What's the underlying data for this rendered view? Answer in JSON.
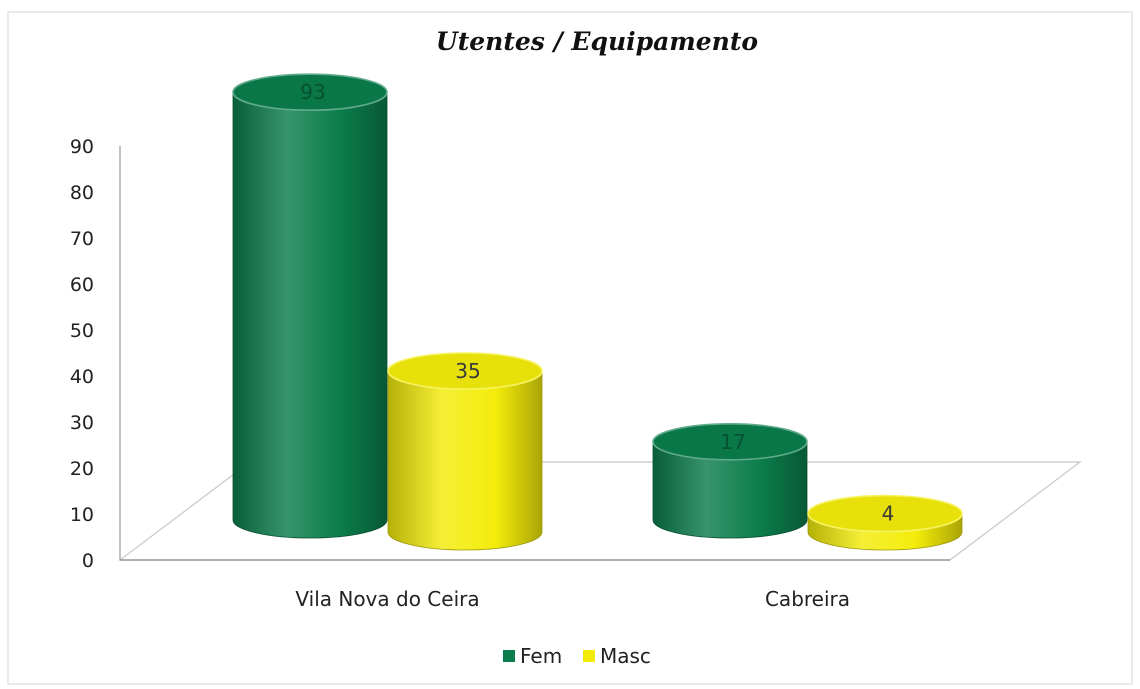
{
  "chart_data": {
    "type": "bar",
    "title": "Utentes / Equipamento",
    "categories": [
      "Vila Nova do Ceira",
      "Cabreira"
    ],
    "series": [
      {
        "name": "Fem",
        "values": [
          93,
          17
        ],
        "color": "#0b7d4c"
      },
      {
        "name": "Masc",
        "values": [
          35,
          4
        ],
        "color": "#f3ec0a"
      }
    ],
    "data_labels": [
      [
        "93",
        "17"
      ],
      [
        "35",
        "4"
      ]
    ],
    "xlabel": "",
    "ylabel": "",
    "ylim": [
      0,
      90
    ],
    "yticks": [
      0,
      10,
      20,
      30,
      40,
      50,
      60,
      70,
      80,
      90
    ],
    "legend_position": "bottom",
    "grid": false,
    "style": "3d-cylinder"
  }
}
